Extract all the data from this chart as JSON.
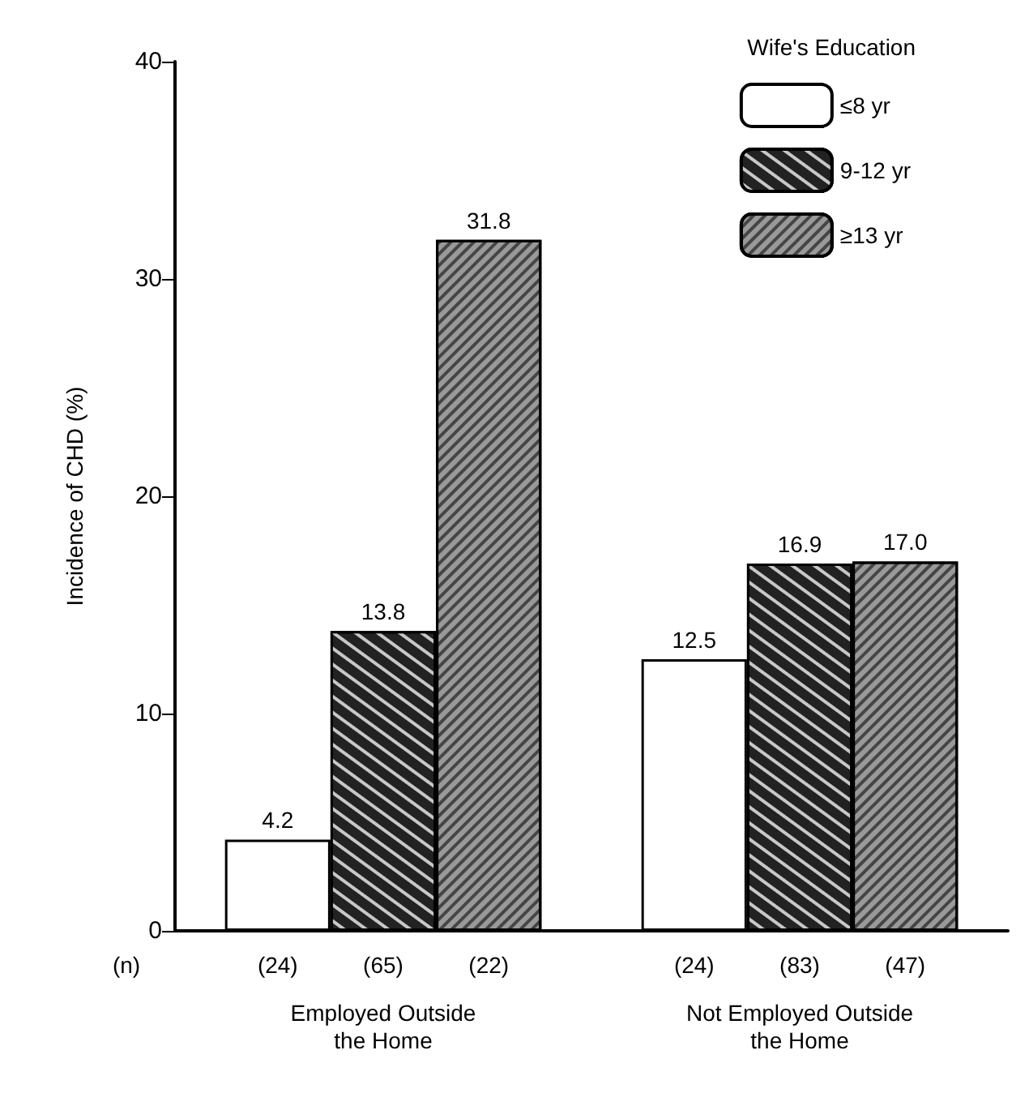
{
  "chart_data": {
    "type": "bar",
    "ylabel": "Incidence of CHD (%)",
    "legend_title": "Wife's Education",
    "categories": [
      "Employed Outside\nthe Home",
      "Not Employed Outside\nthe Home"
    ],
    "series": [
      {
        "name": "≤8 yr",
        "color": "#ffffff",
        "values": [
          4.2,
          12.5
        ],
        "value_labels": [
          "4.2",
          "12.5"
        ]
      },
      {
        "name": "9-12 yr",
        "color": "#222222",
        "values": [
          13.8,
          16.9
        ],
        "value_labels": [
          "13.8",
          "16.9"
        ]
      },
      {
        "name": "≥13 yr",
        "color": "#999999",
        "values": [
          31.8,
          17.0
        ],
        "value_labels": [
          "31.8",
          "17.0"
        ]
      }
    ],
    "ylim": [
      0,
      40
    ],
    "yticks": [
      0,
      10,
      20,
      30,
      40
    ],
    "grid": false,
    "legend": "top right",
    "annotations": [
      "(n)",
      "(24)",
      "(65)",
      "(22)",
      "(24)",
      "(83)",
      "(47)"
    ]
  }
}
